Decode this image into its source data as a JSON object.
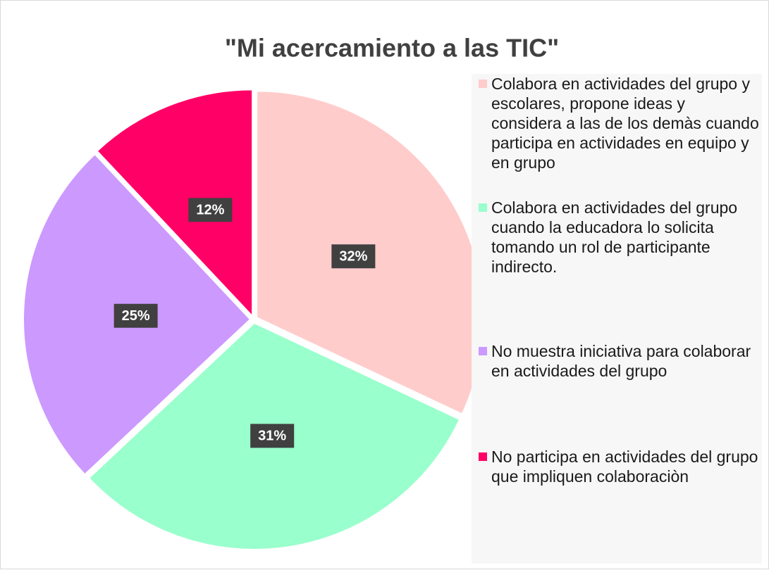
{
  "chart_data": {
    "type": "pie",
    "title": "\"Mi acercamiento a las TIC\"",
    "categories": [
      "Colabora en actividades del grupo y escolares, propone ideas y considera a las de los demàs cuando participa en actividades en equipo y en grupo",
      "Colabora en actividades del grupo cuando la educadora lo solicita tomando un rol de participante indirecto.",
      "No muestra iniciativa para colaborar en actividades del grupo",
      "No participa en actividades del grupo que impliquen colaboraciòn"
    ],
    "values": [
      32,
      31,
      25,
      12
    ],
    "value_labels": [
      "32%",
      "31%",
      "25%",
      "12%"
    ],
    "colors": [
      "#ffcccc",
      "#99ffcc",
      "#cc99ff",
      "#ff0066"
    ],
    "legend": "right"
  }
}
